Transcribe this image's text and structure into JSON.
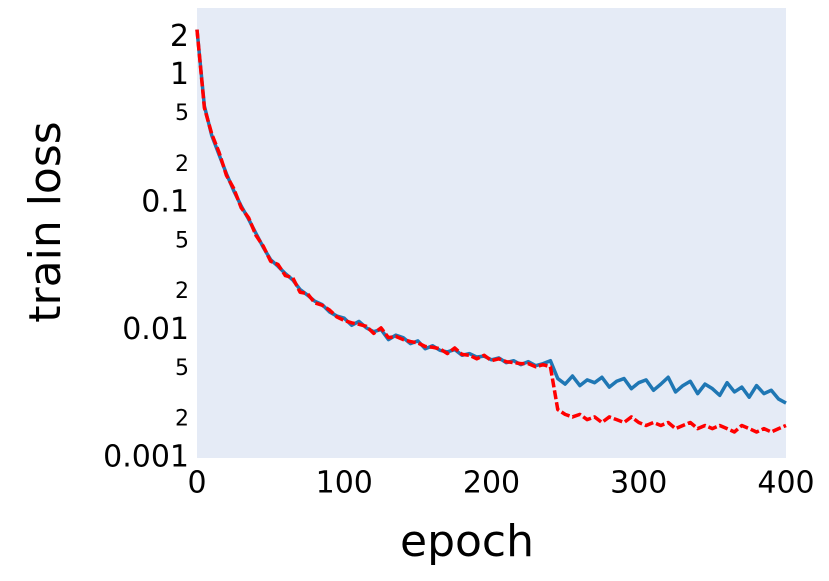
{
  "chart_data": {
    "type": "line",
    "xlabel": "epoch",
    "ylabel": "train loss",
    "x": [
      0,
      5,
      10,
      15,
      20,
      25,
      30,
      35,
      40,
      45,
      50,
      55,
      60,
      65,
      70,
      75,
      80,
      85,
      90,
      95,
      100,
      105,
      110,
      115,
      120,
      125,
      130,
      135,
      140,
      145,
      150,
      155,
      160,
      165,
      170,
      175,
      180,
      185,
      190,
      195,
      200,
      205,
      210,
      215,
      220,
      225,
      230,
      235,
      240,
      245,
      250,
      255,
      260,
      265,
      270,
      275,
      280,
      285,
      290,
      295,
      300,
      305,
      310,
      315,
      320,
      325,
      330,
      335,
      340,
      345,
      350,
      355,
      360,
      365,
      370,
      375,
      380,
      385,
      390,
      395,
      400
    ],
    "series": [
      {
        "color": "#1f77b4",
        "dash": false,
        "values": [
          2.3,
          0.58,
          0.34,
          0.24,
          0.17,
          0.125,
          0.095,
          0.075,
          0.058,
          0.045,
          0.036,
          0.032,
          0.028,
          0.025,
          0.021,
          0.019,
          0.017,
          0.016,
          0.014,
          0.013,
          0.0125,
          0.011,
          0.0118,
          0.0105,
          0.0098,
          0.0102,
          0.0085,
          0.0092,
          0.0088,
          0.0079,
          0.0083,
          0.0072,
          0.0076,
          0.007,
          0.0068,
          0.0071,
          0.0064,
          0.0066,
          0.0062,
          0.0063,
          0.0059,
          0.0061,
          0.0056,
          0.0058,
          0.0054,
          0.0057,
          0.0053,
          0.0055,
          0.0058,
          0.0042,
          0.0038,
          0.0044,
          0.0037,
          0.0041,
          0.0039,
          0.0043,
          0.0036,
          0.004,
          0.0042,
          0.0035,
          0.0039,
          0.0041,
          0.0034,
          0.0038,
          0.0043,
          0.0033,
          0.0037,
          0.004,
          0.0032,
          0.0038,
          0.0035,
          0.0031,
          0.0039,
          0.0033,
          0.0036,
          0.003,
          0.0037,
          0.0032,
          0.0034,
          0.0029,
          0.0027
        ]
      },
      {
        "color": "#ff0000",
        "dash": true,
        "values": [
          2.3,
          0.56,
          0.35,
          0.25,
          0.165,
          0.13,
          0.092,
          0.077,
          0.056,
          0.046,
          0.035,
          0.033,
          0.027,
          0.026,
          0.02,
          0.0195,
          0.0165,
          0.0158,
          0.0145,
          0.0128,
          0.012,
          0.0115,
          0.0112,
          0.0108,
          0.0095,
          0.0105,
          0.0088,
          0.009,
          0.0085,
          0.0082,
          0.008,
          0.0075,
          0.0074,
          0.0072,
          0.0066,
          0.0073,
          0.0065,
          0.0064,
          0.006,
          0.0064,
          0.0058,
          0.006,
          0.0057,
          0.0056,
          0.0055,
          0.0055,
          0.0052,
          0.0054,
          0.0052,
          0.0024,
          0.0022,
          0.0021,
          0.0022,
          0.002,
          0.0021,
          0.0019,
          0.0021,
          0.002,
          0.0019,
          0.0021,
          0.0019,
          0.0018,
          0.0019,
          0.0018,
          0.0019,
          0.0017,
          0.0018,
          0.0019,
          0.0017,
          0.0018,
          0.0017,
          0.0018,
          0.0017,
          0.0016,
          0.0018,
          0.0017,
          0.0016,
          0.0017,
          0.0016,
          0.0017,
          0.0018
        ]
      }
    ],
    "xlim": [
      0,
      400
    ],
    "xticks": [
      0,
      100,
      200,
      300,
      400
    ],
    "ylog": true,
    "ylim": [
      0.001,
      3.4
    ],
    "yticks": [
      "0.001",
      {
        "value": 0.002,
        "label": "2"
      },
      {
        "value": 0.005,
        "label": "5"
      },
      0.01,
      {
        "value": 0.02,
        "label": "2"
      },
      {
        "value": 0.05,
        "label": "5"
      },
      0.1,
      {
        "value": 0.2,
        "label": "2"
      },
      {
        "value": 0.5,
        "label": "5"
      },
      1,
      2
    ],
    "grid": false,
    "background": "#e5ebf6"
  }
}
